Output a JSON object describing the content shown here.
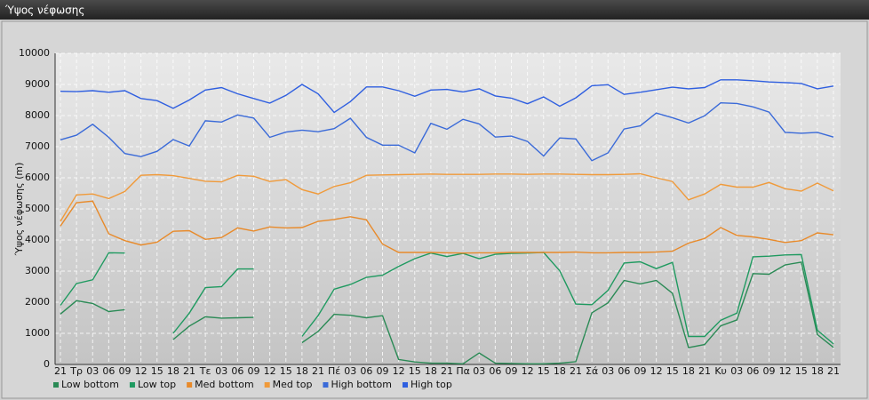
{
  "chart_data": {
    "type": "line",
    "title": "Ύψος νέφωσης",
    "y_label": "Ύψος νέφωσης (m)",
    "categories": [
      "21",
      "Τρ",
      "03",
      "06",
      "09",
      "12",
      "15",
      "18",
      "21",
      "Τε",
      "03",
      "06",
      "09",
      "12",
      "15",
      "18",
      "21",
      "Πέ",
      "03",
      "06",
      "09",
      "12",
      "15",
      "18",
      "21",
      "Πα",
      "03",
      "06",
      "09",
      "12",
      "15",
      "18",
      "21",
      "Σά",
      "03",
      "06",
      "09",
      "12",
      "15",
      "18",
      "21",
      "Κυ",
      "03",
      "06",
      "09",
      "12",
      "15",
      "18",
      "21"
    ],
    "ylim": [
      0,
      10000
    ],
    "yticks": [
      0,
      1000,
      2000,
      3000,
      4000,
      5000,
      6000,
      7000,
      8000,
      9000,
      10000
    ],
    "grid": true,
    "legend": "bottom",
    "series": [
      {
        "name": "Low bottom",
        "color": "#2a8a55",
        "values": [
          1620,
          2050,
          1960,
          1700,
          1760,
          null,
          null,
          800,
          1230,
          1530,
          1490,
          1500,
          1510,
          null,
          null,
          700,
          1060,
          1610,
          1580,
          1500,
          1570,
          160,
          80,
          40,
          40,
          20,
          370,
          40,
          30,
          20,
          20,
          40,
          90,
          1660,
          1980,
          2700,
          2590,
          2700,
          2290,
          540,
          640,
          1240,
          1430,
          2920,
          2900,
          3200,
          3290,
          960,
          550
        ]
      },
      {
        "name": "Low top",
        "color": "#1f9a60",
        "values": [
          1900,
          2600,
          2720,
          3590,
          3580,
          null,
          null,
          1000,
          1650,
          2470,
          2500,
          3070,
          3070,
          null,
          null,
          900,
          1570,
          2420,
          2570,
          2800,
          2870,
          3150,
          3400,
          3580,
          3470,
          3570,
          3400,
          3540,
          3570,
          3580,
          3600,
          3010,
          1940,
          1920,
          2380,
          3260,
          3300,
          3080,
          3280,
          900,
          900,
          1420,
          1650,
          3460,
          3480,
          3520,
          3530,
          1100,
          660
        ]
      },
      {
        "name": "Med bottom",
        "color": "#e88a2a",
        "values": [
          4450,
          5200,
          5250,
          4200,
          3980,
          3840,
          3930,
          4280,
          4300,
          4020,
          4080,
          4390,
          4290,
          4420,
          4390,
          4400,
          4600,
          4660,
          4750,
          4650,
          3870,
          3600,
          3600,
          3600,
          3590,
          3580,
          3590,
          3590,
          3600,
          3600,
          3600,
          3600,
          3610,
          3590,
          3590,
          3600,
          3600,
          3610,
          3640,
          3900,
          4050,
          4400,
          4150,
          4100,
          4020,
          3920,
          3980,
          4230,
          4170
        ]
      },
      {
        "name": "Med top",
        "color": "#f09a3a",
        "values": [
          4600,
          5450,
          5480,
          5330,
          5560,
          6080,
          6100,
          6070,
          5980,
          5890,
          5870,
          6080,
          6050,
          5880,
          5940,
          5620,
          5480,
          5720,
          5840,
          6080,
          6090,
          6100,
          6110,
          6120,
          6110,
          6110,
          6110,
          6120,
          6120,
          6110,
          6120,
          6120,
          6110,
          6100,
          6100,
          6110,
          6130,
          6000,
          5880,
          5290,
          5480,
          5790,
          5700,
          5700,
          5850,
          5650,
          5570,
          5830,
          5580
        ]
      },
      {
        "name": "High bottom",
        "color": "#3a6ad8",
        "values": [
          7220,
          7370,
          7720,
          7300,
          6780,
          6680,
          6850,
          7230,
          7020,
          7830,
          7790,
          8020,
          7920,
          7300,
          7470,
          7530,
          7480,
          7580,
          7910,
          7300,
          7050,
          7050,
          6800,
          7750,
          7560,
          7880,
          7730,
          7310,
          7340,
          7170,
          6700,
          7280,
          7250,
          6550,
          6800,
          7570,
          7670,
          8080,
          7930,
          7760,
          7990,
          8410,
          8390,
          8280,
          8110,
          7460,
          7430,
          7460,
          7310
        ]
      },
      {
        "name": "High top",
        "color": "#2f5fe0",
        "values": [
          8780,
          8770,
          8800,
          8750,
          8800,
          8550,
          8480,
          8230,
          8500,
          8820,
          8900,
          8700,
          8550,
          8400,
          8650,
          9000,
          8700,
          8100,
          8450,
          8920,
          8920,
          8800,
          8620,
          8820,
          8840,
          8760,
          8860,
          8630,
          8560,
          8380,
          8600,
          8300,
          8570,
          8960,
          8990,
          8680,
          8750,
          8830,
          8910,
          8860,
          8900,
          9150,
          9150,
          9120,
          9080,
          9060,
          9030,
          8860,
          8950
        ]
      }
    ]
  }
}
